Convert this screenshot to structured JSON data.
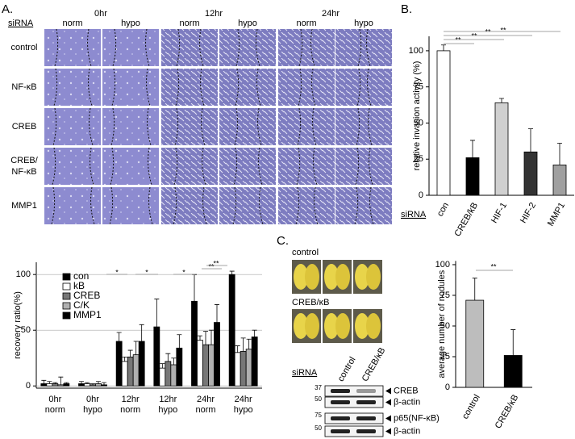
{
  "figure": {
    "panel_a": {
      "label": "A.",
      "siRNA": "siRNA",
      "times": [
        "0hr",
        "12hr",
        "24hr"
      ],
      "conditions": [
        "norm",
        "hypo",
        "norm",
        "hypo",
        "norm",
        "hypo"
      ],
      "rows": [
        [
          "control"
        ],
        [
          "NF-κB"
        ],
        [
          "CREB"
        ],
        [
          "CREB/",
          "NF-κB"
        ],
        [
          "MMP1"
        ]
      ]
    },
    "panel_b": {
      "label": "B.",
      "siRNA": "siRNA"
    },
    "panel_c": {
      "label": "C.",
      "photo_labels": [
        "control",
        "CREB/κB"
      ],
      "blot": {
        "siRNA": "siRNA",
        "lanes": [
          "control",
          "CREB/κB"
        ],
        "bands": [
          "CREB",
          "β-actin",
          "p65(NF-κB)",
          "β-actin"
        ],
        "mw": [
          "37",
          "50",
          "75",
          "50"
        ]
      }
    }
  },
  "chart_data": [
    {
      "type": "bar",
      "ylabel": "recovery ratio(%)",
      "categories": [
        [
          "0hr",
          "norm"
        ],
        [
          "0hr",
          "hypo"
        ],
        [
          "12hr",
          "norm"
        ],
        [
          "12hr",
          "hypo"
        ],
        [
          "24hr",
          "norm"
        ],
        [
          "24hr",
          "hypo"
        ]
      ],
      "series": [
        {
          "name": "con",
          "color": "#000000",
          "values": [
            2,
            2,
            40,
            53,
            76,
            100
          ],
          "errors": [
            3,
            2,
            8,
            25,
            24,
            3
          ]
        },
        {
          "name": "kB",
          "color": "#ffffff",
          "values": [
            2,
            2,
            22,
            16,
            41,
            30
          ],
          "errors": [
            2,
            1,
            4,
            4,
            4,
            6
          ]
        },
        {
          "name": "CREB",
          "color": "#777777",
          "values": [
            2,
            1,
            26,
            22,
            37,
            31
          ],
          "errors": [
            1,
            1,
            6,
            7,
            12,
            12
          ]
        },
        {
          "name": "C/K",
          "color": "#b0b0b0",
          "values": [
            1,
            2,
            28,
            19,
            37,
            33
          ],
          "errors": [
            7,
            2,
            12,
            6,
            13,
            9
          ]
        },
        {
          "name": "MMP1",
          "color": "#000000",
          "values": [
            2,
            1,
            40,
            34,
            57,
            44
          ],
          "errors": [
            1,
            2,
            15,
            12,
            16,
            6
          ]
        }
      ],
      "ylim": [
        -2,
        111
      ],
      "yticks": [
        0,
        50,
        100
      ],
      "grid": true,
      "legend": "upper-left",
      "annotations": [
        "*",
        "*",
        "*",
        "**",
        "**"
      ]
    },
    {
      "type": "bar",
      "ylabel": "relative invasion activity (%)",
      "categories": [
        "con",
        "CREB/kB",
        "HIF-1",
        "HIF-2",
        "MMP1"
      ],
      "series": [
        {
          "colors": [
            "#ffffff",
            "#000000",
            "#d0d0d0",
            "#333333",
            "#a0a0a0"
          ],
          "values": [
            100,
            26,
            64,
            30,
            21
          ],
          "errors": [
            4,
            12,
            3,
            16,
            15
          ]
        }
      ],
      "ylim": [
        0,
        110
      ],
      "yticks": [
        0,
        25,
        50,
        75,
        100
      ],
      "grid": false,
      "annotations": [
        "**",
        "**",
        "**",
        "**"
      ]
    },
    {
      "type": "bar",
      "ylabel": "average number of nodules",
      "categories": [
        "control",
        "CREB/κB"
      ],
      "series": [
        {
          "colors": [
            "#bdbdbd",
            "#000000"
          ],
          "values": [
            71,
            26
          ],
          "errors": [
            18,
            21
          ]
        }
      ],
      "ylim": [
        0,
        103
      ],
      "yticks": [
        0,
        25,
        50,
        75,
        100
      ],
      "grid": false,
      "annotations": [
        "**"
      ]
    }
  ]
}
